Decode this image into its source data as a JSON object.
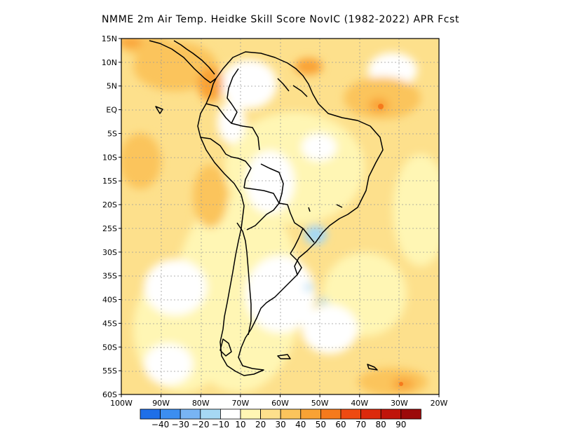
{
  "title": "NMME  2m Air Temp. Heidke Skill Score NovIC (1982-2022) APR Fcst",
  "map": {
    "lon_range": [
      -100,
      -20
    ],
    "lat_range": [
      -60,
      15
    ],
    "lat_ticks": [
      {
        "lat": 15,
        "label": "15N"
      },
      {
        "lat": 10,
        "label": "10N"
      },
      {
        "lat": 5,
        "label": "5N"
      },
      {
        "lat": 0,
        "label": "EQ"
      },
      {
        "lat": -5,
        "label": "5S"
      },
      {
        "lat": -10,
        "label": "10S"
      },
      {
        "lat": -15,
        "label": "15S"
      },
      {
        "lat": -20,
        "label": "20S"
      },
      {
        "lat": -25,
        "label": "25S"
      },
      {
        "lat": -30,
        "label": "30S"
      },
      {
        "lat": -35,
        "label": "35S"
      },
      {
        "lat": -40,
        "label": "40S"
      },
      {
        "lat": -45,
        "label": "45S"
      },
      {
        "lat": -50,
        "label": "50S"
      },
      {
        "lat": -55,
        "label": "55S"
      },
      {
        "lat": -60,
        "label": "60S"
      }
    ],
    "lon_ticks": [
      {
        "lon": -100,
        "label": "100W"
      },
      {
        "lon": -90,
        "label": "90W"
      },
      {
        "lon": -80,
        "label": "80W"
      },
      {
        "lon": -70,
        "label": "70W"
      },
      {
        "lon": -60,
        "label": "60W"
      },
      {
        "lon": -50,
        "label": "50W"
      },
      {
        "lon": -40,
        "label": "40W"
      },
      {
        "lon": -30,
        "label": "30W"
      },
      {
        "lon": -20,
        "label": "20W"
      }
    ],
    "gridlines": "dotted",
    "coastlines": "black"
  },
  "colorbar": {
    "labels": [
      "-40",
      "-30",
      "-20",
      "-10",
      "10",
      "20",
      "30",
      "40",
      "50",
      "60",
      "70",
      "80",
      "90"
    ],
    "colors": [
      "#1e6fe8",
      "#3c8ef0",
      "#78b4f4",
      "#a6d8f4",
      "#ffffff",
      "#fff6b4",
      "#fde08c",
      "#fbc45c",
      "#f9a234",
      "#f67a1c",
      "#ee4a12",
      "#dc2a0c",
      "#c0140a",
      "#9c0a0a"
    ]
  }
}
